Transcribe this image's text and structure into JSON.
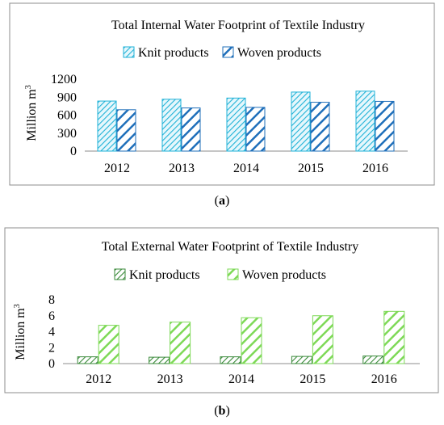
{
  "chart_data": [
    {
      "type": "bar",
      "title": "Total Internal Water Footprint of Textile Industry",
      "xlabel": "",
      "ylabel": "Million m",
      "ylabel_superscript": "3",
      "ylim": [
        0,
        1200
      ],
      "yticks": [
        "0",
        "300",
        "600",
        "900",
        "1200"
      ],
      "categories": [
        "2012",
        "2013",
        "2014",
        "2015",
        "2016"
      ],
      "series": [
        {
          "name": "Knit products",
          "values": [
            835,
            865,
            885,
            985,
            1000
          ],
          "color": "#1fb2d7",
          "pattern": "thin-hatch"
        },
        {
          "name": "Woven products",
          "values": [
            690,
            720,
            730,
            815,
            830
          ],
          "color": "#1f6fba",
          "pattern": "thick-hatch"
        }
      ],
      "legend": "top-center",
      "grid": false
    },
    {
      "type": "bar",
      "title": "Total External Water Footprint of Textile Industry",
      "xlabel": "",
      "ylabel": "Million m",
      "ylabel_superscript": "3",
      "ylim": [
        0,
        8
      ],
      "yticks": [
        "0",
        "2",
        "4",
        "6",
        "8"
      ],
      "categories": [
        "2012",
        "2013",
        "2014",
        "2015",
        "2016"
      ],
      "series": [
        {
          "name": "Knit products",
          "values": [
            0.85,
            0.8,
            0.85,
            0.9,
            0.95
          ],
          "color": "#3a8a3a",
          "pattern": "thin-hatch"
        },
        {
          "name": "Woven products",
          "values": [
            4.8,
            5.2,
            5.75,
            6.0,
            6.55
          ],
          "color": "#7ed957",
          "pattern": "thick-hatch"
        }
      ],
      "legend": "top-center",
      "grid": false
    }
  ],
  "captions": [
    {
      "open": "(",
      "letter": "a",
      "close": ")"
    },
    {
      "open": "(",
      "letter": "b",
      "close": ")"
    }
  ]
}
